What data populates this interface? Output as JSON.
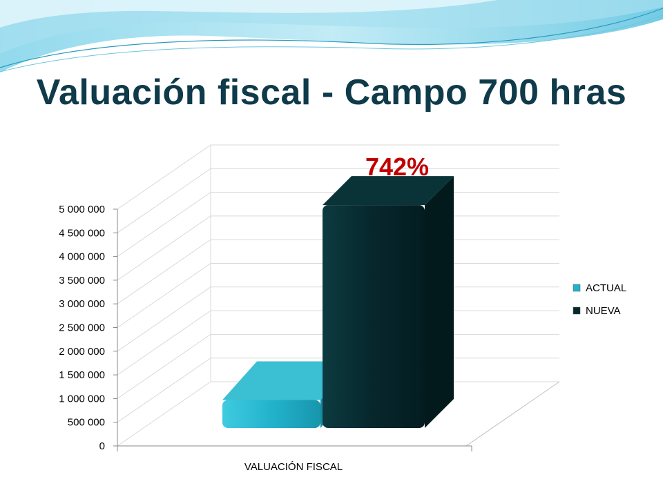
{
  "slide": {
    "title": "Valuación fiscal - Campo 700 hras"
  },
  "colors": {
    "title": "#0f3a4a",
    "annotation": "#c00000",
    "actual": "#22b3cc",
    "nueva": "#06272c"
  },
  "chart_data": {
    "type": "bar",
    "style": "3d-column",
    "categories": [
      "VALUACIÓN FISCAL"
    ],
    "series": [
      {
        "name": "ACTUAL",
        "values": [
          560000
        ],
        "color": "#22b3cc"
      },
      {
        "name": "NUEVA",
        "values": [
          4720000
        ],
        "color": "#06272c"
      }
    ],
    "y_ticks": [
      0,
      500000,
      1000000,
      1500000,
      2000000,
      2500000,
      3000000,
      3500000,
      4000000,
      4500000,
      5000000
    ],
    "y_tick_labels": [
      "0",
      "500 000",
      "1 000 000",
      "1 500 000",
      "2 000 000",
      "2 500 000",
      "3 000 000",
      "3 500 000",
      "4 000 000",
      "4 500 000",
      "5 000 000"
    ],
    "ylim": [
      0,
      5000000
    ],
    "grid": true,
    "legend": "right",
    "annotation": "742%"
  }
}
